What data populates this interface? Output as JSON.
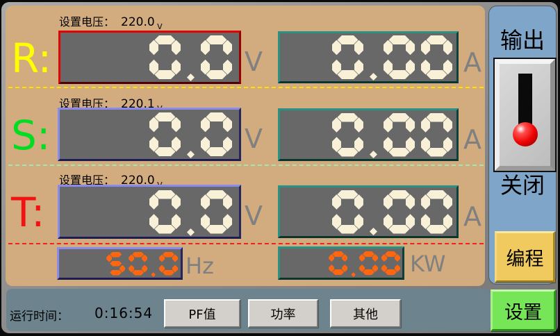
{
  "colors": {
    "segment_cream": "#f8f1d8",
    "segment_orange": "#ff6610",
    "phase_r": "#ffff00",
    "phase_s": "#00dd22",
    "phase_t": "#f21212",
    "separator_r": "#ffe000",
    "separator_s": "#9fe8b0",
    "separator_t": "#ee2020",
    "panel_tan": "#d2ac7e",
    "panel_blue": "#7fa6c9",
    "display_bg": "#686868",
    "program_yellow": "#f0ca5e",
    "settings_green": "#76e658"
  },
  "phases": [
    {
      "label": "R:",
      "set_label": "设置电压：",
      "set_value": "220.0",
      "set_unit": "v",
      "voltage": "0.0",
      "voltage_unit": "V",
      "current": "0.00",
      "current_unit": "A"
    },
    {
      "label": "S:",
      "set_label": "设置电压：",
      "set_value": "220.1",
      "set_unit": "v",
      "voltage": "0.0",
      "voltage_unit": "V",
      "current": "0.00",
      "current_unit": "A"
    },
    {
      "label": "T:",
      "set_label": "设置电压：",
      "set_value": "220.0",
      "set_unit": "v",
      "voltage": "0.0",
      "voltage_unit": "V",
      "current": "0.00",
      "current_unit": "A"
    }
  ],
  "measurements": {
    "frequency": "50.0",
    "frequency_unit": "Hz",
    "power": "0.00",
    "power_unit": "KW"
  },
  "side_panel": {
    "output_label": "输出",
    "output_state": "关闭",
    "program_button": "编程",
    "settings_button": "设置"
  },
  "status_bar": {
    "runtime_label": "运行时间：",
    "runtime_value": "0:16:54",
    "buttons": [
      {
        "label": "PF值"
      },
      {
        "label": "功率"
      },
      {
        "label": "其他"
      }
    ]
  }
}
